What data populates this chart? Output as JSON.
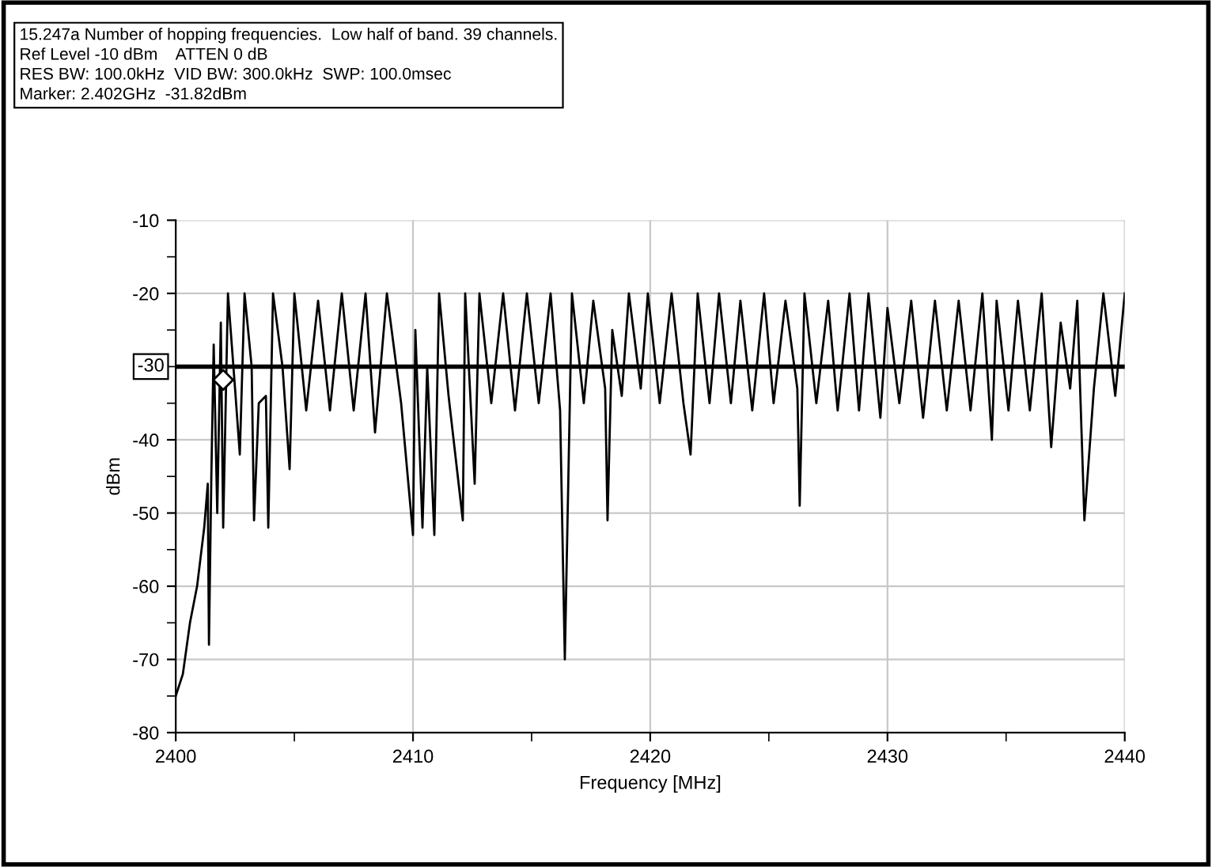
{
  "chart_data": {
    "type": "line",
    "title": "15.247a Number of hopping frequencies.  Low half of band. 39 channels.",
    "annotations": [
      "Ref Level -10 dBm    ATTEN 0 dB",
      "RES BW: 100.0kHz  VID BW: 300.0kHz  SWP: 100.0msec",
      "Marker: 2.402GHz  -31.82dBm"
    ],
    "xlabel": "Frequency [MHz]",
    "ylabel": "dBm",
    "xlim": [
      2400,
      2440
    ],
    "ylim": [
      -80,
      -10
    ],
    "xticks": [
      2400,
      {
        "value": 2405,
        "label": null
      },
      2410,
      {
        "value": 2415,
        "label": null
      },
      2420,
      {
        "value": 2425,
        "label": null
      },
      2430,
      {
        "value": 2435,
        "label": null
      },
      2440
    ],
    "yticks": [
      -80,
      {
        "value": -75,
        "label": null
      },
      -70,
      {
        "value": -65,
        "label": null
      },
      -60,
      {
        "value": -55,
        "label": null
      },
      -50,
      {
        "value": -45,
        "label": null
      },
      -40,
      {
        "value": -35,
        "label": null
      },
      {
        "value": -30,
        "label": null
      },
      {
        "value": -25,
        "label": null
      },
      -20,
      {
        "value": -15,
        "label": null
      },
      -10
    ],
    "grid": true,
    "legend": false,
    "line_style": "solid",
    "ref_lines": [
      {
        "axis": "y",
        "value": -30,
        "label": "-30",
        "color": "#000000"
      }
    ],
    "series": [
      {
        "color": "#000000",
        "marker": "none",
        "x": [
          2400.0,
          2400.3,
          2400.6,
          2400.9,
          2401.2,
          2401.35,
          2401.4,
          2401.5,
          2401.6,
          2401.75,
          2401.9,
          2402.0,
          2402.2,
          2402.5,
          2402.7,
          2402.9,
          2403.2,
          2403.3,
          2403.5,
          2403.8,
          2403.9,
          2404.1,
          2404.5,
          2404.8,
          2405.0,
          2405.5,
          2406.0,
          2406.5,
          2407.0,
          2407.5,
          2408.0,
          2408.4,
          2408.9,
          2409.5,
          2410.0,
          2410.1,
          2410.4,
          2410.6,
          2410.9,
          2411.1,
          2411.5,
          2412.1,
          2412.2,
          2412.6,
          2412.8,
          2413.3,
          2413.8,
          2414.3,
          2414.8,
          2415.3,
          2415.8,
          2416.2,
          2416.4,
          2416.7,
          2417.2,
          2417.6,
          2418.1,
          2418.2,
          2418.4,
          2418.8,
          2419.1,
          2419.6,
          2419.9,
          2420.4,
          2420.9,
          2421.4,
          2421.7,
          2422.0,
          2422.5,
          2422.9,
          2423.4,
          2423.8,
          2424.3,
          2424.8,
          2425.2,
          2425.7,
          2426.2,
          2426.3,
          2426.5,
          2427.0,
          2427.5,
          2427.9,
          2428.4,
          2428.8,
          2429.2,
          2429.7,
          2430.0,
          2430.5,
          2431.0,
          2431.5,
          2432.0,
          2432.5,
          2433.0,
          2433.5,
          2434.0,
          2434.4,
          2434.6,
          2435.1,
          2435.5,
          2436.0,
          2436.5,
          2436.9,
          2437.3,
          2437.7,
          2438.0,
          2438.3,
          2438.7,
          2439.1,
          2439.6,
          2440.0
        ],
        "values": [
          -75,
          -72,
          -65,
          -60,
          -52,
          -46,
          -68,
          -45,
          -27,
          -50,
          -24,
          -52,
          -20,
          -33,
          -42,
          -20,
          -30,
          -51,
          -35,
          -34,
          -52,
          -20,
          -30,
          -44,
          -20,
          -36,
          -21,
          -36,
          -20,
          -36,
          -20,
          -39,
          -20,
          -35,
          -53,
          -25,
          -52,
          -30,
          -53,
          -20,
          -34,
          -51,
          -20,
          -46,
          -20,
          -35,
          -20,
          -36,
          -20,
          -35,
          -20,
          -36,
          -70,
          -20,
          -35,
          -21,
          -33,
          -51,
          -25,
          -34,
          -20,
          -33,
          -20,
          -35,
          -20,
          -35,
          -42,
          -20,
          -35,
          -20,
          -35,
          -21,
          -36,
          -20,
          -35,
          -21,
          -33,
          -49,
          -20,
          -35,
          -21,
          -36,
          -20,
          -36,
          -20,
          -37,
          -22,
          -35,
          -21,
          -37,
          -21,
          -36,
          -21,
          -36,
          -20,
          -40,
          -21,
          -36,
          -21,
          -36,
          -20,
          -41,
          -24,
          -33,
          -21,
          -51,
          -33,
          -20,
          -34,
          -20
        ]
      },
      {
        "type": "scatter",
        "color": "#000000",
        "marker": "diamond",
        "x": [
          2402
        ],
        "values": [
          -31.82
        ]
      }
    ]
  }
}
